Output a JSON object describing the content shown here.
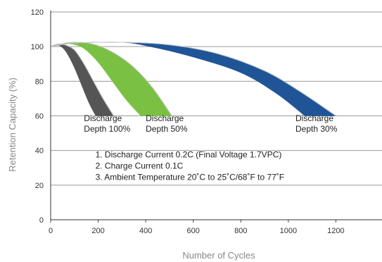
{
  "chart_data": {
    "type": "area",
    "xlabel": "Number of Cycles",
    "ylabel": "Retention Capacity (%)",
    "xlim": [
      0,
      1400
    ],
    "ylim": [
      0,
      120
    ],
    "x_ticks": [
      0,
      200,
      400,
      600,
      800,
      1000,
      1200
    ],
    "y_ticks": [
      0,
      20,
      40,
      60,
      80,
      100,
      120
    ],
    "grid": "horizontal",
    "series": [
      {
        "color": "#555555",
        "upper": [
          [
            0,
            100
          ],
          [
            30,
            101.5
          ],
          [
            60,
            101
          ],
          [
            100,
            98
          ],
          [
            140,
            90
          ],
          [
            180,
            80
          ],
          [
            220,
            70
          ],
          [
            265,
            60
          ]
        ],
        "lower": [
          [
            0,
            100
          ],
          [
            20,
            101
          ],
          [
            45,
            100
          ],
          [
            70,
            96
          ],
          [
            100,
            88
          ],
          [
            130,
            78
          ],
          [
            160,
            68
          ],
          [
            190,
            60
          ]
        ]
      },
      {
        "color": "#7ac143",
        "upper": [
          [
            0,
            100
          ],
          [
            60,
            102
          ],
          [
            120,
            102.5
          ],
          [
            190,
            101
          ],
          [
            270,
            96
          ],
          [
            350,
            88
          ],
          [
            430,
            76
          ],
          [
            510,
            60
          ]
        ],
        "lower": [
          [
            0,
            100
          ],
          [
            40,
            101.5
          ],
          [
            90,
            101.5
          ],
          [
            140,
            99
          ],
          [
            200,
            91
          ],
          [
            260,
            80
          ],
          [
            320,
            69
          ],
          [
            380,
            60
          ]
        ]
      },
      {
        "color": "#1f5597",
        "upper": [
          [
            0,
            100
          ],
          [
            100,
            102
          ],
          [
            300,
            102.5
          ],
          [
            500,
            101
          ],
          [
            700,
            96
          ],
          [
            900,
            86
          ],
          [
            1050,
            74
          ],
          [
            1200,
            60
          ]
        ],
        "lower": [
          [
            0,
            100
          ],
          [
            100,
            102
          ],
          [
            300,
            102.5
          ],
          [
            420,
            100
          ],
          [
            600,
            94
          ],
          [
            800,
            85
          ],
          [
            950,
            73
          ],
          [
            1070,
            60
          ]
        ]
      }
    ],
    "annotations": [
      {
        "lines": [
          "Discharge",
          "Depth 100%"
        ],
        "x": 140,
        "y": 57
      },
      {
        "lines": [
          "Discharge",
          "Depth 50%"
        ],
        "x": 400,
        "y": 57
      },
      {
        "lines": [
          "Discharge",
          "Depth 30%"
        ],
        "x": 1030,
        "y": 57
      }
    ],
    "notes": [
      "1. Discharge Current 0.2C (Final Voltage 1.7VPC)",
      "2. Charge Current 0.1C",
      "3. Ambient Temperature 20˚C to 25˚C/68˚F to 77˚F"
    ],
    "notes_anchor": {
      "x": 200,
      "y": 36
    }
  }
}
